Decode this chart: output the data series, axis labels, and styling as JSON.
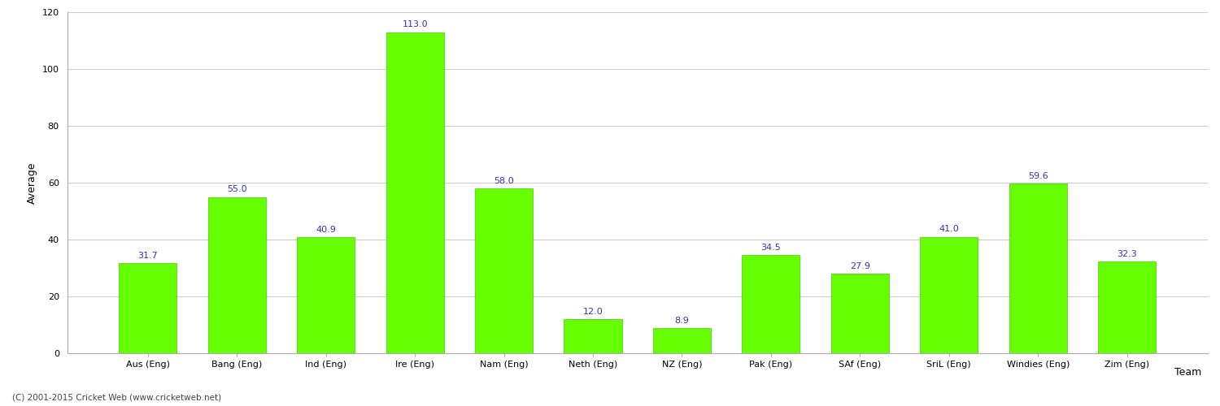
{
  "categories": [
    "Aus (Eng)",
    "Bang (Eng)",
    "Ind (Eng)",
    "Ire (Eng)",
    "Nam (Eng)",
    "Neth (Eng)",
    "NZ (Eng)",
    "Pak (Eng)",
    "SAf (Eng)",
    "SriL (Eng)",
    "Windies (Eng)",
    "Zim (Eng)"
  ],
  "values": [
    31.7,
    55.0,
    40.9,
    113.0,
    58.0,
    12.0,
    8.9,
    34.5,
    27.9,
    41.0,
    59.6,
    32.3
  ],
  "bar_color": "#66ff00",
  "bar_edge_color": "#44cc00",
  "label_color": "#3333aa",
  "xlabel": "Team",
  "ylabel": "Average",
  "ylim": [
    0,
    120
  ],
  "yticks": [
    0,
    20,
    40,
    60,
    80,
    100,
    120
  ],
  "grid_color": "#cccccc",
  "background_color": "#ffffff",
  "axis_label_fontsize": 9,
  "tick_fontsize": 8,
  "value_label_fontsize": 8,
  "footer_text": "(C) 2001-2015 Cricket Web (www.cricketweb.net)"
}
